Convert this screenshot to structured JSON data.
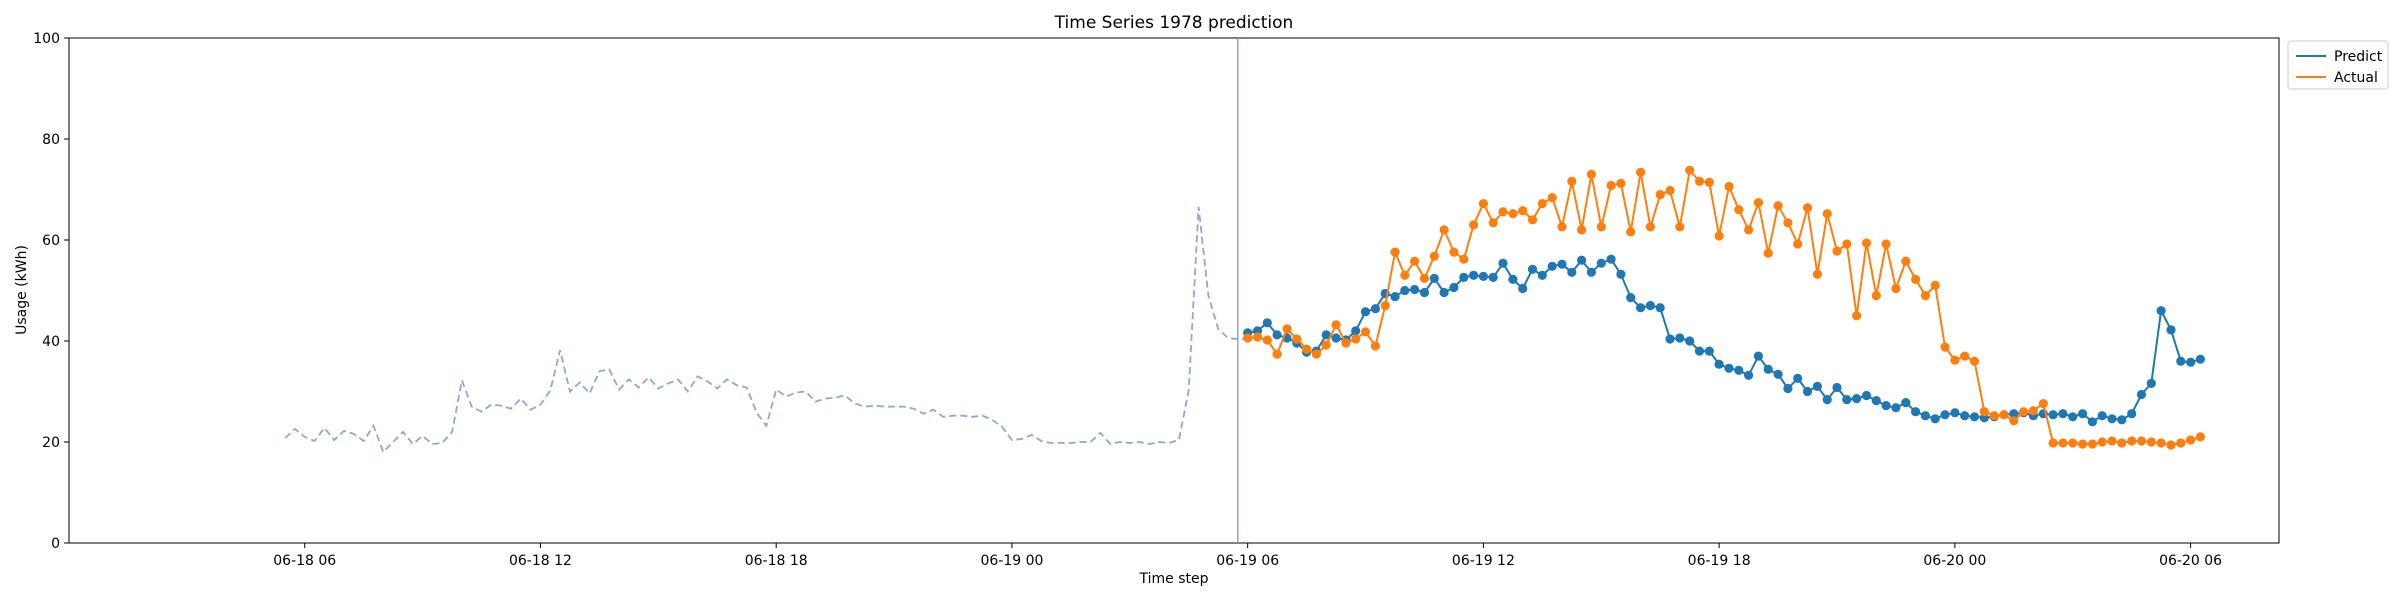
{
  "chart_data": {
    "type": "line",
    "title": "Time Series 1978 prediction",
    "xlabel": "Time step",
    "ylabel": "Usage (kWh)",
    "ylim": [
      0,
      100
    ],
    "xlim": [
      "2023-06-18T00:00",
      "2023-06-20T08:15"
    ],
    "yticks": [
      0,
      20,
      40,
      60,
      80,
      100
    ],
    "xticks": [
      {
        "t": "2023-06-18T06:00",
        "label": "06-18 06"
      },
      {
        "t": "2023-06-18T12:00",
        "label": "06-18 12"
      },
      {
        "t": "2023-06-18T18:00",
        "label": "06-18 18"
      },
      {
        "t": "2023-06-19T00:00",
        "label": "06-19 00"
      },
      {
        "t": "2023-06-19T06:00",
        "label": "06-19 06"
      },
      {
        "t": "2023-06-19T12:00",
        "label": "06-19 12"
      },
      {
        "t": "2023-06-19T18:00",
        "label": "06-19 18"
      },
      {
        "t": "2023-06-20T00:00",
        "label": "06-20 00"
      },
      {
        "t": "2023-06-20T06:00",
        "label": "06-20 06"
      }
    ],
    "grid": false,
    "legend": {
      "position": "upper-right-outside",
      "entries": [
        "Predict",
        "Actual"
      ]
    },
    "forecast_start": "2023-06-19T05:45",
    "history": {
      "start": "2023-06-18T05:30",
      "step_minutes": 15,
      "color": "#8fa8cf",
      "style": "dashed",
      "values": [
        20.8,
        22.6,
        21.0,
        20.2,
        22.8,
        20.4,
        22.2,
        21.6,
        20.2,
        23.2,
        18.0,
        20.0,
        22.0,
        19.6,
        21.2,
        19.6,
        19.8,
        22.0,
        32.2,
        27.0,
        26.0,
        27.4,
        27.2,
        26.6,
        28.6,
        26.4,
        27.4,
        30.2,
        38.2,
        30.0,
        31.8,
        29.6,
        34.0,
        34.4,
        30.4,
        32.4,
        30.8,
        32.8,
        30.6,
        31.6,
        32.4,
        30.0,
        33.0,
        32.0,
        30.6,
        32.4,
        31.2,
        30.8,
        25.8,
        23.2,
        30.4,
        29.0,
        29.8,
        30.0,
        28.0,
        28.6,
        28.8,
        29.2,
        27.6,
        27.0,
        27.2,
        27.0,
        27.0,
        27.0,
        26.6,
        25.6,
        26.4,
        25.0,
        25.2,
        25.2,
        25.0,
        25.2,
        24.4,
        23.0,
        20.4,
        20.6,
        21.4,
        20.2,
        19.8,
        19.8,
        19.8,
        20.0,
        20.0,
        21.8,
        19.6,
        20.0,
        19.8,
        20.0,
        19.6,
        20.0,
        19.8,
        20.4,
        30.2,
        66.6,
        49.0,
        42.4,
        40.6,
        40.4,
        40.4,
        41.0
      ]
    },
    "series": [
      {
        "name": "Predict",
        "color": "#1f77b4",
        "start": "2023-06-19T06:00",
        "step_minutes": 15,
        "values": [
          41.6,
          42.0,
          43.6,
          41.2,
          40.6,
          39.6,
          37.8,
          38.0,
          41.2,
          40.6,
          40.2,
          42.0,
          45.8,
          46.4,
          49.4,
          48.8,
          50.0,
          50.2,
          49.6,
          52.4,
          49.6,
          50.6,
          52.6,
          53.0,
          52.8,
          52.6,
          55.4,
          52.2,
          50.4,
          54.2,
          53.0,
          54.8,
          55.2,
          53.6,
          56.0,
          53.6,
          55.4,
          56.2,
          53.2,
          48.6,
          46.6,
          47.0,
          46.6,
          40.4,
          40.6,
          40.0,
          38.0,
          38.0,
          35.4,
          34.6,
          34.2,
          33.2,
          37.0,
          34.4,
          33.4,
          30.6,
          32.6,
          30.0,
          31.0,
          28.4,
          30.8,
          28.4,
          28.6,
          29.2,
          28.2,
          27.2,
          26.8,
          27.8,
          26.0,
          25.2,
          24.6,
          25.4,
          25.8,
          25.2,
          25.0,
          24.8,
          25.0,
          25.4,
          25.6,
          25.8,
          25.2,
          25.6,
          25.4,
          25.6,
          25.0,
          25.6,
          24.0,
          25.2,
          24.6,
          24.4,
          25.6,
          29.4,
          31.6,
          46.0,
          42.2,
          36.0,
          35.8,
          36.4
        ]
      },
      {
        "name": "Actual",
        "color": "#ff7f0e",
        "start": "2023-06-19T06:00",
        "step_minutes": 15,
        "values": [
          40.6,
          40.8,
          40.2,
          37.4,
          42.4,
          40.4,
          38.4,
          37.4,
          39.2,
          43.2,
          39.6,
          40.4,
          41.8,
          39.0,
          47.0,
          57.6,
          53.0,
          55.8,
          52.4,
          56.8,
          62.0,
          57.6,
          56.2,
          63.0,
          67.2,
          63.4,
          65.6,
          65.2,
          65.8,
          64.0,
          67.2,
          68.4,
          62.6,
          71.6,
          62.0,
          73.0,
          62.6,
          70.8,
          71.2,
          61.6,
          73.4,
          62.6,
          69.0,
          69.8,
          62.6,
          73.8,
          71.6,
          71.4,
          60.8,
          70.6,
          66.0,
          62.0,
          67.4,
          57.4,
          66.8,
          63.4,
          59.2,
          66.4,
          53.2,
          65.2,
          57.8,
          59.2,
          45.0,
          59.4,
          49.0,
          59.2,
          50.4,
          55.8,
          52.2,
          49.0,
          51.0,
          38.8,
          36.2,
          37.0,
          36.0,
          26.0,
          25.2,
          25.4,
          24.2,
          26.0,
          26.2,
          27.6,
          19.8,
          19.8,
          19.8,
          19.6,
          19.6,
          20.0,
          20.2,
          19.8,
          20.2,
          20.2,
          20.0,
          19.8,
          19.4,
          19.8,
          20.4,
          21.0
        ]
      }
    ]
  }
}
